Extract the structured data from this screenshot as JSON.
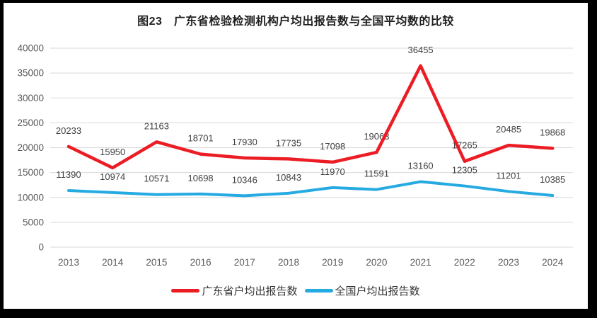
{
  "title": "图23　广东省检验检测机构户均出报告数与全国平均数的比较",
  "chart_data": {
    "type": "line",
    "x": [
      "2013",
      "2014",
      "2015",
      "2016",
      "2017",
      "2018",
      "2019",
      "2020",
      "2021",
      "2022",
      "2023",
      "2024"
    ],
    "series": [
      {
        "name": "广东省户均出报告数",
        "color": "#ec1c24",
        "values": [
          20233,
          15950,
          21163,
          18701,
          17930,
          17735,
          17098,
          19063,
          36455,
          17265,
          20485,
          19868
        ]
      },
      {
        "name": "全国户均出报告数",
        "color": "#25aae1",
        "values": [
          11390,
          10974,
          10571,
          10698,
          10346,
          10843,
          11970,
          11591,
          13160,
          12305,
          11201,
          10385
        ]
      }
    ],
    "ylim": [
      0,
      40000
    ],
    "yticks": [
      0,
      5000,
      10000,
      15000,
      20000,
      25000,
      30000,
      35000,
      40000
    ],
    "grid": true,
    "grid_color": "#d9d9d9",
    "axis_text_color": "#595959",
    "data_label_color": "#404040",
    "legend_position": "bottom",
    "data_labels": true
  }
}
